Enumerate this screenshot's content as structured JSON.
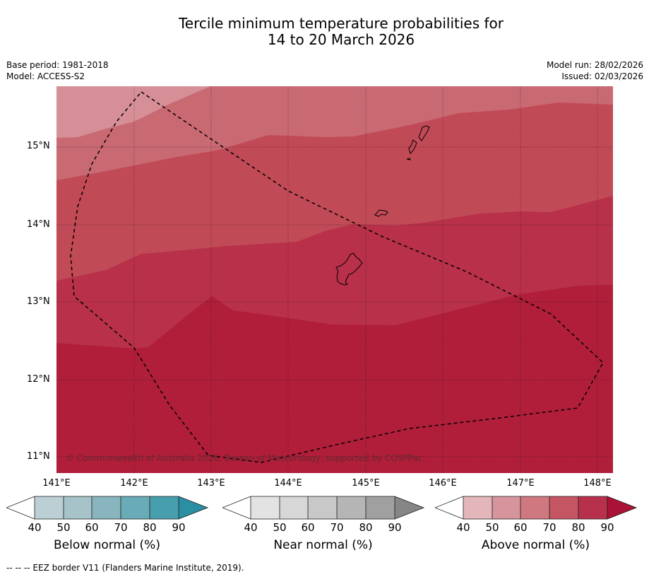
{
  "title": {
    "line1": "Tercile minimum temperature probabilities for",
    "line2": "14 to 20 March 2026"
  },
  "meta_left": {
    "base_period": "Base period: 1981-2018",
    "model": "Model: ACCESS-S2"
  },
  "meta_right": {
    "model_run": "Model run: 28/02/2026",
    "issued": "Issued: 02/03/2026"
  },
  "map": {
    "lat_labels": [
      "15°N",
      "14°N",
      "13°N",
      "12°N",
      "11°N"
    ],
    "lon_labels": [
      "141°E",
      "142°E",
      "143°E",
      "144°E",
      "145°E",
      "146°E",
      "147°E",
      "148°E"
    ],
    "copyright": "© Commonwealth of Australia 2026, Bureau of Meteorology, supported by COSPPac",
    "fill_colors": {
      "above_50": "#d68f96",
      "above_60": "#c96972",
      "above_70": "#c14a57",
      "above_80": "#b8304a",
      "above_90": "#b01e3a"
    },
    "region_probability_classes": [
      "50-60",
      "60-70",
      "70-80",
      "80-90",
      "90+"
    ]
  },
  "legends": [
    {
      "title": "Below normal (%)",
      "ticks": [
        "40",
        "50",
        "60",
        "70",
        "80",
        "90"
      ],
      "colors": [
        "#ffffff",
        "#bccfd4",
        "#a5c3c8",
        "#88b5be",
        "#6aabb8",
        "#479fae",
        "#2b8fa3"
      ]
    },
    {
      "title": "Near normal (%)",
      "ticks": [
        "40",
        "50",
        "60",
        "70",
        "80",
        "90"
      ],
      "colors": [
        "#ffffff",
        "#e3e3e3",
        "#d7d7d7",
        "#c8c8c8",
        "#b5b5b5",
        "#a0a0a0",
        "#868686"
      ]
    },
    {
      "title": "Above normal (%)",
      "ticks": [
        "40",
        "50",
        "60",
        "70",
        "80",
        "90"
      ],
      "colors": [
        "#ffffff",
        "#e2b6bb",
        "#d6959c",
        "#cf7880",
        "#c55563",
        "#b8314c",
        "#ab1336"
      ]
    }
  ],
  "footnote": "--  --  -- EEZ border V11 (Flanders Marine Institute, 2019)."
}
